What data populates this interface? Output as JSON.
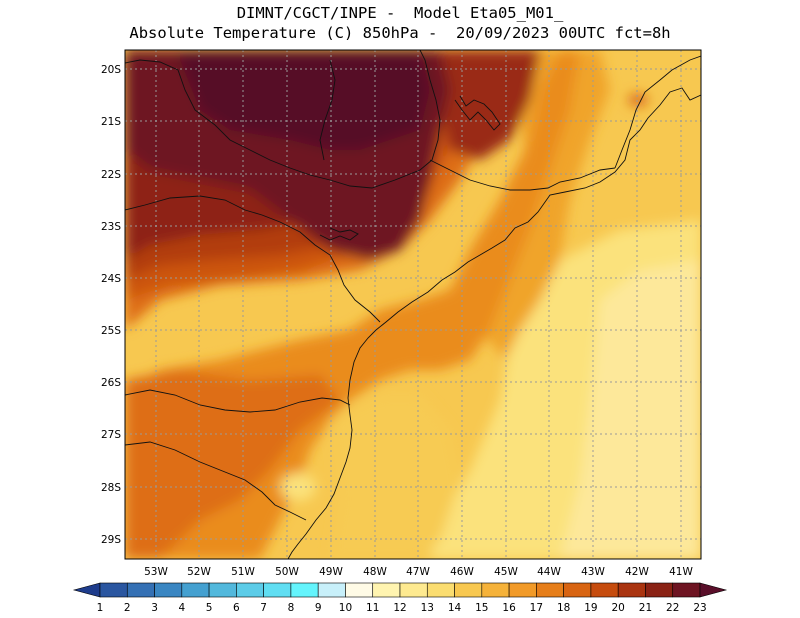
{
  "title": {
    "line1": "DIMNT/CGCT/INPE -  Model Eta05_M01_",
    "line2": "Absolute Temperature (C) 850hPa -  20/09/2023 00UTC fct=8h"
  },
  "map": {
    "lat_ticks": [
      "20S",
      "21S",
      "22S",
      "23S",
      "24S",
      "25S",
      "26S",
      "27S",
      "28S",
      "29S"
    ],
    "lon_ticks": [
      "53W",
      "52W",
      "51W",
      "50W",
      "49W",
      "48W",
      "47W",
      "46W",
      "45W",
      "44W",
      "43W",
      "42W",
      "41W"
    ]
  },
  "colorbar": {
    "labels": [
      "1",
      "2",
      "3",
      "4",
      "5",
      "6",
      "7",
      "8",
      "9",
      "10",
      "11",
      "12",
      "13",
      "14",
      "15",
      "16",
      "17",
      "18",
      "19",
      "20",
      "21",
      "22",
      "23"
    ],
    "colors": [
      "#1e3c8c",
      "#2a56a0",
      "#3470b4",
      "#3a86c2",
      "#44a0d0",
      "#52b8dc",
      "#5ccce8",
      "#60def2",
      "#64f4fc",
      "#c8f0fa",
      "#fffbe6",
      "#fff4b0",
      "#feea90",
      "#fbdd70",
      "#f8c850",
      "#f5b23a",
      "#f19a28",
      "#e67e1a",
      "#d86412",
      "#c64c0e",
      "#aa3410",
      "#8a2214",
      "#6e1422",
      "#5a0f2a"
    ]
  }
}
